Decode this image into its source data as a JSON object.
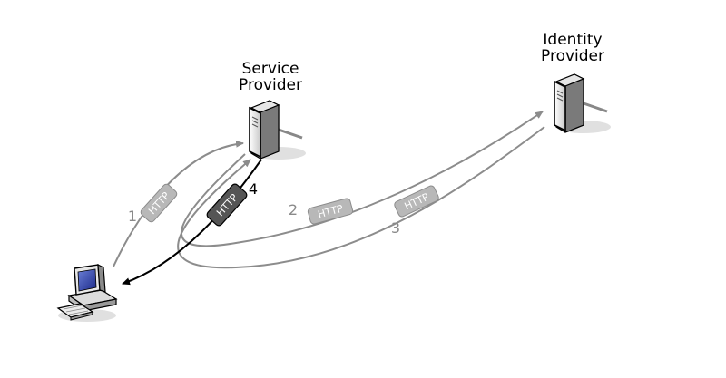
{
  "nodes": {
    "service_provider": {
      "line1": "Service",
      "line2": "Provider"
    },
    "identity_provider": {
      "line1": "Identity",
      "line2": "Provider"
    }
  },
  "steps": [
    {
      "number": "1",
      "protocol": "HTTP"
    },
    {
      "number": "2",
      "protocol": "HTTP"
    },
    {
      "number": "3",
      "protocol": "HTTP"
    },
    {
      "number": "4",
      "protocol": "HTTP"
    }
  ],
  "colors": {
    "arrow_gray": "#8c8c8c",
    "arrow_black": "#000000",
    "tag_gray": "#b8b8b8",
    "tag_dark": "#555555"
  },
  "icons": [
    "server-icon",
    "server-icon",
    "computer-icon"
  ]
}
